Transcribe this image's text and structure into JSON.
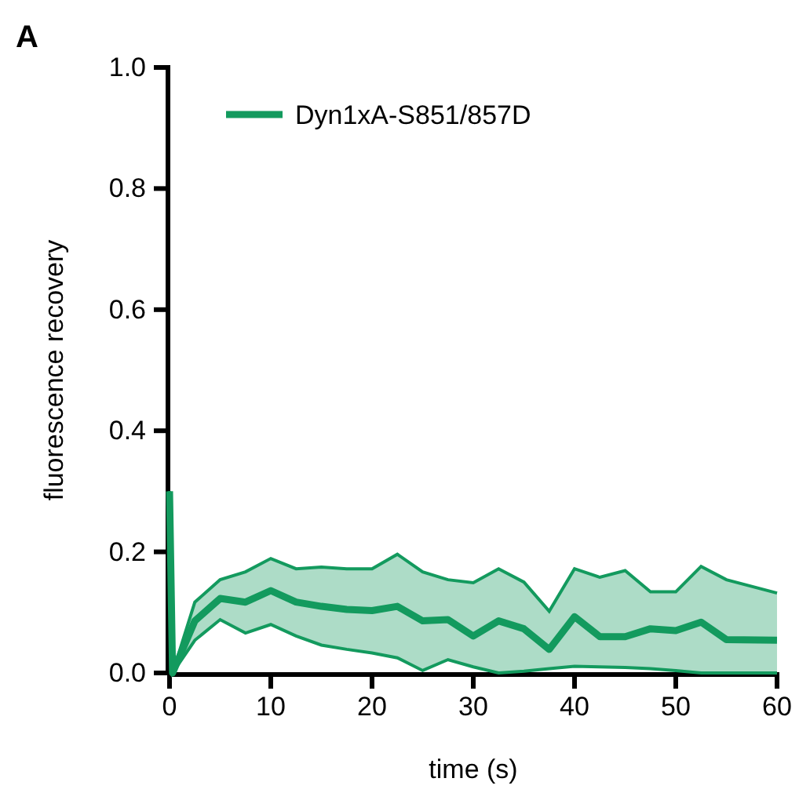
{
  "chart_data": {
    "type": "line",
    "xlabel": "time (s)",
    "ylabel": "fluorescence recovery",
    "x": [
      0,
      0.3,
      2.5,
      5,
      7.5,
      10,
      12.5,
      15,
      17.5,
      20,
      22.5,
      25,
      27.5,
      30,
      32.5,
      35,
      37.5,
      40,
      42.5,
      45,
      47.5,
      50,
      52.5,
      55,
      60
    ],
    "series": [
      {
        "name": "Dyn1xA-S851/857D",
        "color": "#139a5e",
        "values": [
          0.3,
          0,
          0.086,
          0.123,
          0.117,
          0.136,
          0.117,
          0.11,
          0.105,
          0.103,
          0.11,
          0.086,
          0.088,
          0.061,
          0.086,
          0.073,
          0.039,
          0.093,
          0.06,
          0.06,
          0.073,
          0.07,
          0.084,
          0.055,
          0.054
        ],
        "lower": [
          0.3,
          0,
          0.054,
          0.088,
          0.066,
          0.08,
          0.061,
          0.046,
          0.039,
          0.033,
          0.025,
          0.004,
          0.022,
          0.01,
          0,
          0.003,
          0.007,
          0.011,
          0.01,
          0.009,
          0.007,
          0.004,
          0,
          0,
          0
        ],
        "upper": [
          0.3,
          0,
          0.117,
          0.154,
          0.167,
          0.189,
          0.172,
          0.175,
          0.172,
          0.172,
          0.196,
          0.167,
          0.154,
          0.149,
          0.172,
          0.15,
          0.102,
          0.172,
          0.158,
          0.169,
          0.134,
          0.134,
          0.176,
          0.154,
          0.132
        ]
      }
    ],
    "xlim": [
      0,
      60
    ],
    "xticks": [
      0,
      10,
      20,
      30,
      40,
      50,
      60
    ],
    "ylim": [
      0,
      1
    ],
    "yticks": [
      {
        "value": 0,
        "label": "0.0"
      },
      {
        "value": 0.2,
        "label": "0.2"
      },
      {
        "value": 0.4,
        "label": "0.4"
      },
      {
        "value": 0.6,
        "label": "0.6"
      },
      {
        "value": 0.8,
        "label": "0.8"
      },
      {
        "value": 1,
        "label": "1.0"
      }
    ],
    "legend": "top left",
    "annotations": [
      "A"
    ]
  }
}
